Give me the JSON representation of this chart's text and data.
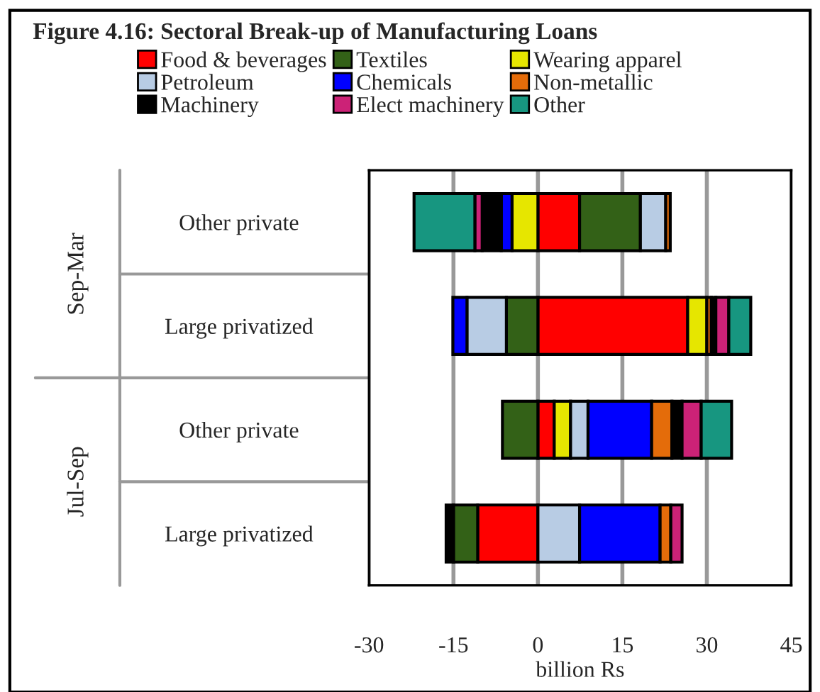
{
  "chart_data": {
    "type": "bar",
    "orientation": "horizontal",
    "stacked": true,
    "title": "Figure 4.16: Sectoral Break-up of Manufacturing Loans",
    "xlabel": "billion Rs",
    "categories": [
      "Other private",
      "Large privatized",
      "Other private",
      "Large privatized"
    ],
    "annotations": [
      "Sep-Mar",
      "Jul-Sep"
    ],
    "series": [
      {
        "name": "Food & beverages",
        "color": "#ff0000",
        "values": [
          7.4,
          26.6,
          2.9,
          -10.7
        ]
      },
      {
        "name": "Textiles",
        "color": "#336117",
        "values": [
          10.8,
          -5.6,
          -6.3,
          -4.3
        ]
      },
      {
        "name": "Wearing apparel",
        "color": "#e6e600",
        "values": [
          -4.6,
          3.4,
          2.9,
          null
        ]
      },
      {
        "name": "Petroleum",
        "color": "#b8cce4",
        "values": [
          4.5,
          -7.0,
          3.1,
          7.4
        ]
      },
      {
        "name": "Chemicals",
        "color": "#0000ff",
        "values": [
          -1.9,
          -2.5,
          11.3,
          14.3
        ]
      },
      {
        "name": "Non-metallic",
        "color": "#e46c0a",
        "values": [
          0.8,
          0.8,
          3.6,
          1.9
        ]
      },
      {
        "name": "Machinery",
        "color": "#000000",
        "values": [
          -3.4,
          0.8,
          1.8,
          -1.3
        ]
      },
      {
        "name": "Elect machinery",
        "color": "#cc2277",
        "values": [
          -1.3,
          2.3,
          3.4,
          2.0
        ]
      },
      {
        "name": "Other",
        "color": "#179680",
        "values": [
          -10.8,
          3.9,
          5.4,
          null
        ]
      }
    ],
    "xlim": [
      -30,
      45
    ],
    "xticks": [
      -30,
      -15,
      0,
      15,
      30,
      45
    ],
    "grid": "x",
    "legend": "top"
  }
}
